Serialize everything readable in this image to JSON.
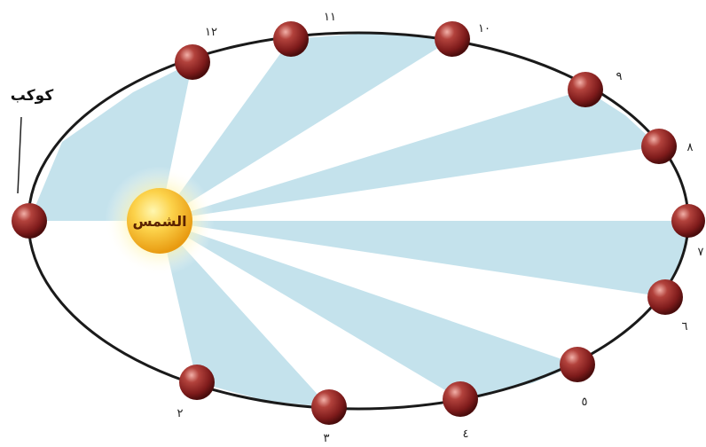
{
  "sun_label": "الشمس",
  "planet_label": "كوكب",
  "position_labels": [
    "٢",
    "٣",
    "٤",
    "٥",
    "٦",
    "٧",
    "٨",
    "٩",
    "١٠",
    "١١",
    "١٢"
  ],
  "colors": {
    "orbit": "#1a1a1a",
    "sector_fill": "#c4e2ec",
    "sun_core": "#f5b21a",
    "sun_glow": "#fff2a6",
    "planet": "#8c1f1f",
    "planet_highlight": "#e08a8a"
  }
}
